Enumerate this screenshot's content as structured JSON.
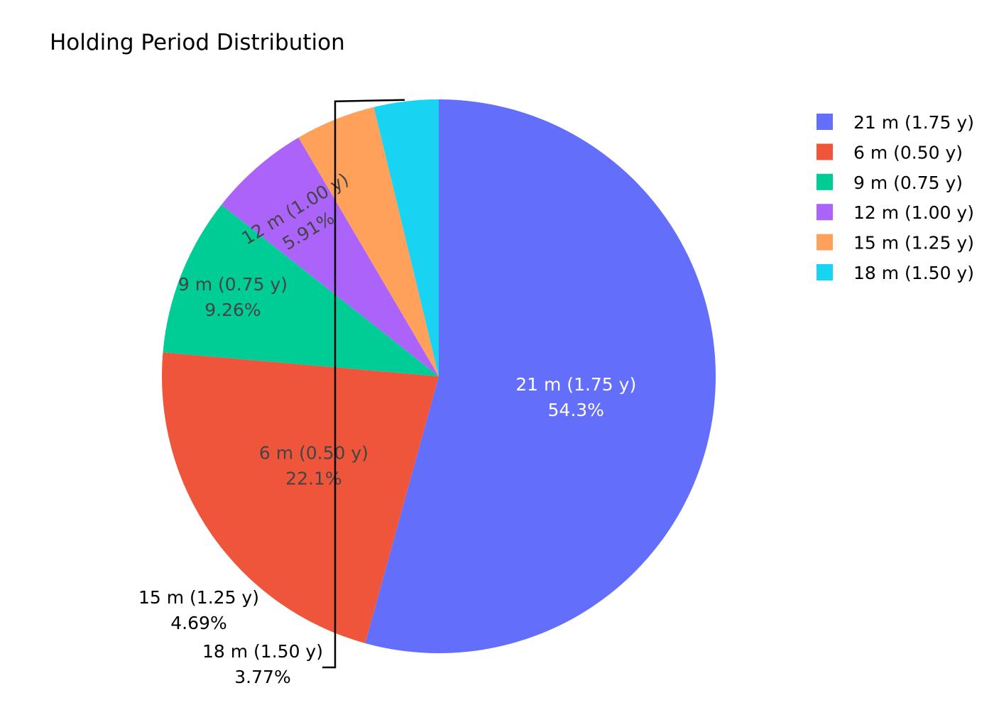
{
  "chart_data": {
    "type": "pie",
    "title": "Holding Period Distribution",
    "sort": "descending",
    "direction": "clockwise",
    "start_angle": "12 o'clock",
    "legend_placement": "top-right",
    "slices": [
      {
        "label": "21 m (1.75 y)",
        "percent_text": "54.3%",
        "value": 54.3,
        "color": "#636efa",
        "label_color": "#ffffff",
        "label_position": "inside"
      },
      {
        "label": "6 m (0.50 y)",
        "percent_text": "22.1%",
        "value": 22.1,
        "color": "#ef553b",
        "label_color": "#444444",
        "label_position": "inside"
      },
      {
        "label": "9 m (0.75 y)",
        "percent_text": "9.26%",
        "value": 9.26,
        "color": "#00cc96",
        "label_color": "#444444",
        "label_position": "inside"
      },
      {
        "label": "12 m (1.00 y)",
        "percent_text": "5.91%",
        "value": 5.91,
        "color": "#ab63fa",
        "label_color": "#444444",
        "label_position": "inside-rotated"
      },
      {
        "label": "15 m (1.25 y)",
        "percent_text": "4.69%",
        "value": 4.69,
        "color": "#ffa15a",
        "label_color": "#000000",
        "label_position": "outside"
      },
      {
        "label": "18 m (1.50 y)",
        "percent_text": "3.77%",
        "value": 3.77,
        "color": "#19d3f3",
        "label_color": "#000000",
        "label_position": "outside"
      }
    ],
    "legend": [
      {
        "label": "21 m (1.75 y)",
        "color": "#636efa"
      },
      {
        "label": "6 m (0.50 y)",
        "color": "#ef553b"
      },
      {
        "label": "9 m (0.75 y)",
        "color": "#00cc96"
      },
      {
        "label": "12 m (1.00 y)",
        "color": "#ab63fa"
      },
      {
        "label": "15 m (1.25 y)",
        "color": "#ffa15a"
      },
      {
        "label": "18 m (1.50 y)",
        "color": "#19d3f3"
      }
    ]
  }
}
